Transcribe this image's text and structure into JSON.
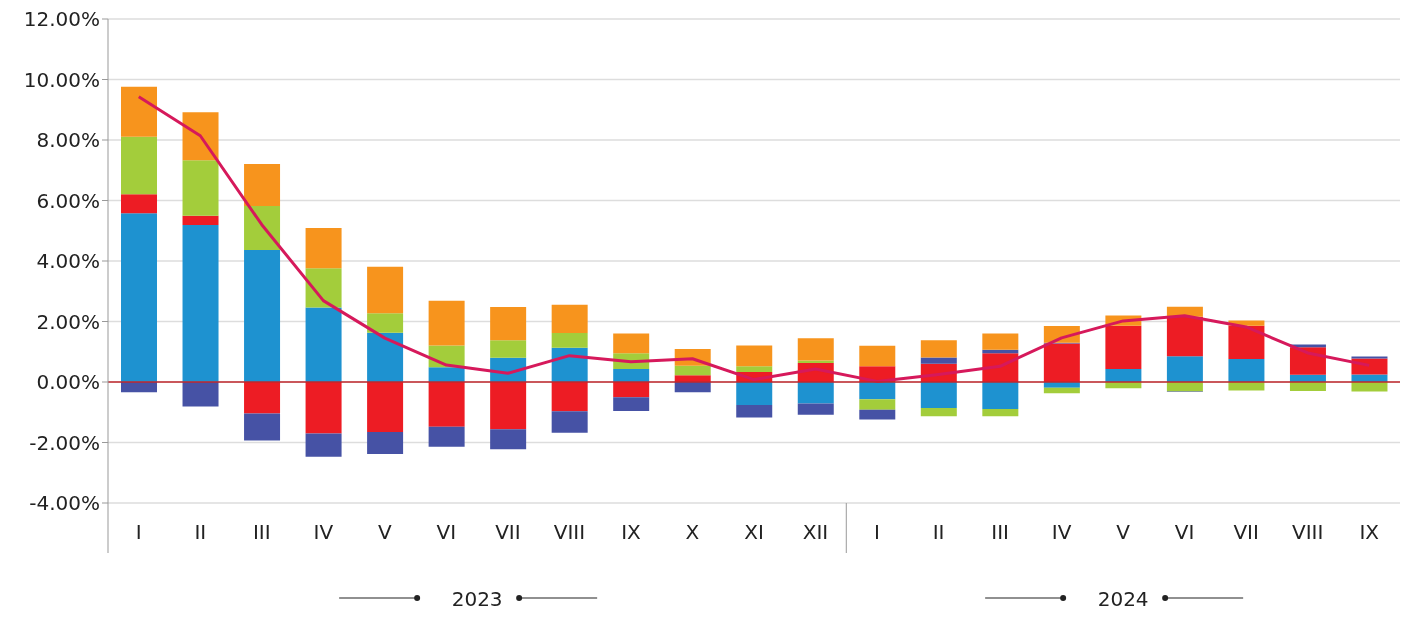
{
  "chart_data": {
    "type": "bar",
    "stacked": true,
    "categories": [
      "I",
      "II",
      "III",
      "IV",
      "V",
      "VI",
      "VII",
      "VIII",
      "IX",
      "X",
      "XI",
      "XII",
      "I",
      "II",
      "III",
      "IV",
      "V",
      "VI",
      "VII",
      "VIII",
      "IX"
    ],
    "series": [
      {
        "color": "#1e92d0",
        "values": [
          5.58,
          5.19,
          4.36,
          2.46,
          1.63,
          0.49,
          0.8,
          1.13,
          0.43,
          0,
          -0.76,
          -0.71,
          -0.57,
          -0.86,
          -0.89,
          -0.19,
          0.43,
          0.85,
          0.76,
          0.24,
          0.25
        ]
      },
      {
        "color": "#ed1c24",
        "values": [
          0.63,
          0.31,
          -1.04,
          -1.7,
          -1.65,
          -1.48,
          -1.56,
          -0.97,
          -0.5,
          0.22,
          0.33,
          0.63,
          0.52,
          0.6,
          0.95,
          1.27,
          1.43,
          1.31,
          1.1,
          0.91,
          0.53
        ]
      },
      {
        "color": "#a3cd3b",
        "values": [
          1.9,
          1.83,
          1.46,
          1.3,
          0.64,
          0.72,
          0.58,
          0.49,
          0.52,
          0.32,
          0.19,
          0.08,
          -0.35,
          -0.27,
          -0.24,
          -0.18,
          -0.21,
          -0.31,
          -0.28,
          -0.3,
          -0.31
        ]
      },
      {
        "color": "#4652a5",
        "values": [
          -0.34,
          -0.81,
          -0.89,
          -0.77,
          -0.73,
          -0.66,
          -0.66,
          -0.71,
          -0.46,
          -0.34,
          -0.41,
          -0.37,
          -0.32,
          0.21,
          0.12,
          0.03,
          0,
          -0.02,
          0,
          0.09,
          0.06
        ]
      },
      {
        "color": "#f7941d",
        "values": [
          1.65,
          1.59,
          1.39,
          1.33,
          1.54,
          1.48,
          1.1,
          0.93,
          0.65,
          0.55,
          0.69,
          0.74,
          0.68,
          0.57,
          0.53,
          0.55,
          0.34,
          0.33,
          0.17,
          0,
          0
        ]
      },
      {
        "type": "line",
        "color": "#d6195b",
        "values": [
          9.43,
          8.14,
          5.2,
          2.69,
          1.45,
          0.56,
          0.29,
          0.87,
          0.67,
          0.77,
          0.08,
          0.43,
          0.02,
          0.25,
          0.52,
          1.46,
          2.02,
          2.19,
          1.82,
          0.96,
          0.55
        ]
      }
    ],
    "ylim": [
      -4,
      12
    ],
    "yticks": [
      {
        "value": -4,
        "label": "-4.00%"
      },
      {
        "value": -2,
        "label": "-2.00%"
      },
      {
        "value": 0,
        "label": "0.00%"
      },
      {
        "value": 2,
        "label": "2.00%"
      },
      {
        "value": 4,
        "label": "4.00%"
      },
      {
        "value": 6,
        "label": "6.00%"
      },
      {
        "value": 8,
        "label": "8.00%"
      },
      {
        "value": 10,
        "label": "10.00%"
      },
      {
        "value": 12,
        "label": "12.00%"
      }
    ],
    "grid": "y",
    "marker": "none",
    "line_style": "solid",
    "legend": false,
    "ref_lines": [
      {
        "axis": "y",
        "value": 0,
        "color": "#c1272d"
      }
    ],
    "annotations": [
      "2023",
      "2024"
    ]
  }
}
